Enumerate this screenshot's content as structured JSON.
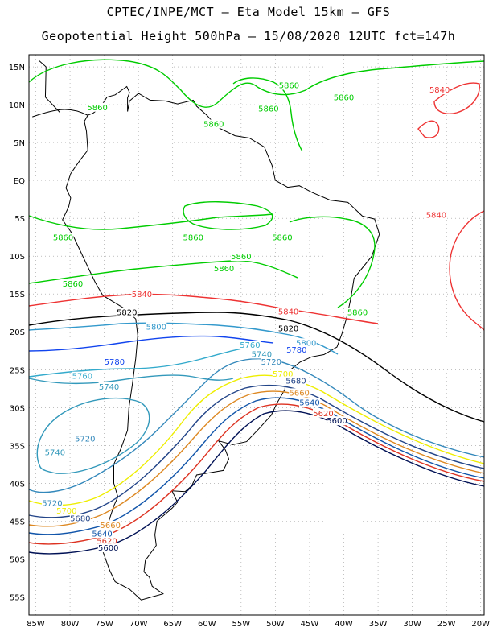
{
  "title": "CPTEC/INPE/MCT –  Eta Model 15km – GFS",
  "subtitle": "Geopotential Height 500hPa – 15/08/2020 12UTC fct=147h",
  "lat_labels": [
    "15N",
    "10N",
    "5N",
    "EQ",
    "5S",
    "10S",
    "15S",
    "20S",
    "25S",
    "30S",
    "35S",
    "40S",
    "45S",
    "50S",
    "55S"
  ],
  "lon_labels": [
    "85W",
    "80W",
    "75W",
    "70W",
    "65W",
    "60W",
    "55W",
    "50W",
    "45W",
    "40W",
    "35W",
    "30W",
    "25W",
    "20W"
  ],
  "colors": {
    "5860": "#00cc00",
    "5840": "#ee3333",
    "5820": "#000000",
    "5800": "#3399cc",
    "5780": "#1144ee",
    "5760": "#33aacc",
    "5740": "#3399bb",
    "5720": "#3388bb",
    "5700": "#eeee00",
    "5680": "#224488",
    "5660": "#dd8822",
    "5640": "#1155aa",
    "5620": "#dd3322",
    "5600": "#001155",
    "coast": "#000000"
  },
  "contour_labels": [
    {
      "text": "5860",
      "level": "5860",
      "lat": 9.5,
      "lon": -76
    },
    {
      "text": "5860",
      "level": "5860",
      "lat": 12.4,
      "lon": -48
    },
    {
      "text": "5860",
      "level": "5860",
      "lat": 9.3,
      "lon": -51
    },
    {
      "text": "5860",
      "level": "5860",
      "lat": 10.8,
      "lon": -40
    },
    {
      "text": "5860",
      "level": "5860",
      "lat": 7.3,
      "lon": -59
    },
    {
      "text": "5860",
      "level": "5860",
      "lat": -7.7,
      "lon": -81
    },
    {
      "text": "5860",
      "level": "5860",
      "lat": -7.7,
      "lon": -62
    },
    {
      "text": "5860",
      "level": "5860",
      "lat": -7.7,
      "lon": -49
    },
    {
      "text": "5860",
      "level": "5860",
      "lat": -10.2,
      "lon": -55
    },
    {
      "text": "5860",
      "level": "5860",
      "lat": -11.8,
      "lon": -57.5
    },
    {
      "text": "5860",
      "level": "5860",
      "lat": -13.8,
      "lon": -79.6
    },
    {
      "text": "5860",
      "level": "5860",
      "lat": -17.6,
      "lon": -38
    },
    {
      "text": "5840",
      "level": "5840",
      "lat": 11.8,
      "lon": -26
    },
    {
      "text": "5840",
      "level": "5840",
      "lat": -4.7,
      "lon": -26.5
    },
    {
      "text": "5840",
      "level": "5840",
      "lat": -15.2,
      "lon": -69.5
    },
    {
      "text": "5840",
      "level": "5840",
      "lat": -17.5,
      "lon": -48.1
    },
    {
      "text": "5820",
      "level": "5820",
      "lat": -17.6,
      "lon": -71.7
    },
    {
      "text": "5820",
      "level": "5820",
      "lat": -19.7,
      "lon": -48.1
    },
    {
      "text": "5800",
      "level": "5800",
      "lat": -19.5,
      "lon": -67.4
    },
    {
      "text": "5800",
      "level": "5800",
      "lat": -21.6,
      "lon": -45.5
    },
    {
      "text": "5780",
      "level": "5780",
      "lat": -24.1,
      "lon": -73.5
    },
    {
      "text": "5780",
      "level": "5780",
      "lat": -22.5,
      "lon": -46.9
    },
    {
      "text": "5760",
      "level": "5760",
      "lat": -26.0,
      "lon": -78.2
    },
    {
      "text": "5760",
      "level": "5760",
      "lat": -21.9,
      "lon": -53.7
    },
    {
      "text": "5740",
      "level": "5740",
      "lat": -27.4,
      "lon": -74.3
    },
    {
      "text": "5740",
      "level": "5740",
      "lat": -23.1,
      "lon": -52.0
    },
    {
      "text": "5720",
      "level": "5720",
      "lat": -24.1,
      "lon": -50.6
    },
    {
      "text": "5720",
      "level": "5720",
      "lat": -34.3,
      "lon": -77.8
    },
    {
      "text": "5740",
      "level": "5740",
      "lat": -36.1,
      "lon": -82.2
    },
    {
      "text": "5720",
      "level": "5720",
      "lat": -42.8,
      "lon": -82.6
    },
    {
      "text": "5700",
      "level": "5700",
      "lat": -25.7,
      "lon": -48.9
    },
    {
      "text": "5700",
      "level": "5700",
      "lat": -43.8,
      "lon": -80.5
    },
    {
      "text": "5680",
      "level": "5680",
      "lat": -26.6,
      "lon": -47.0
    },
    {
      "text": "5680",
      "level": "5680",
      "lat": -44.8,
      "lon": -78.5
    },
    {
      "text": "5660",
      "level": "5660",
      "lat": -28.2,
      "lon": -46.5
    },
    {
      "text": "5660",
      "level": "5660",
      "lat": -45.7,
      "lon": -74.1
    },
    {
      "text": "5640",
      "level": "5640",
      "lat": -29.5,
      "lon": -45.0
    },
    {
      "text": "5640",
      "level": "5640",
      "lat": -46.8,
      "lon": -75.3
    },
    {
      "text": "5620",
      "level": "5620",
      "lat": -30.9,
      "lon": -43.0
    },
    {
      "text": "5620",
      "level": "5620",
      "lat": -47.8,
      "lon": -74.6
    },
    {
      "text": "5600",
      "level": "5600",
      "lat": -31.9,
      "lon": -41.0
    },
    {
      "text": "5600",
      "level": "5600",
      "lat": -48.7,
      "lon": -74.4
    }
  ]
}
